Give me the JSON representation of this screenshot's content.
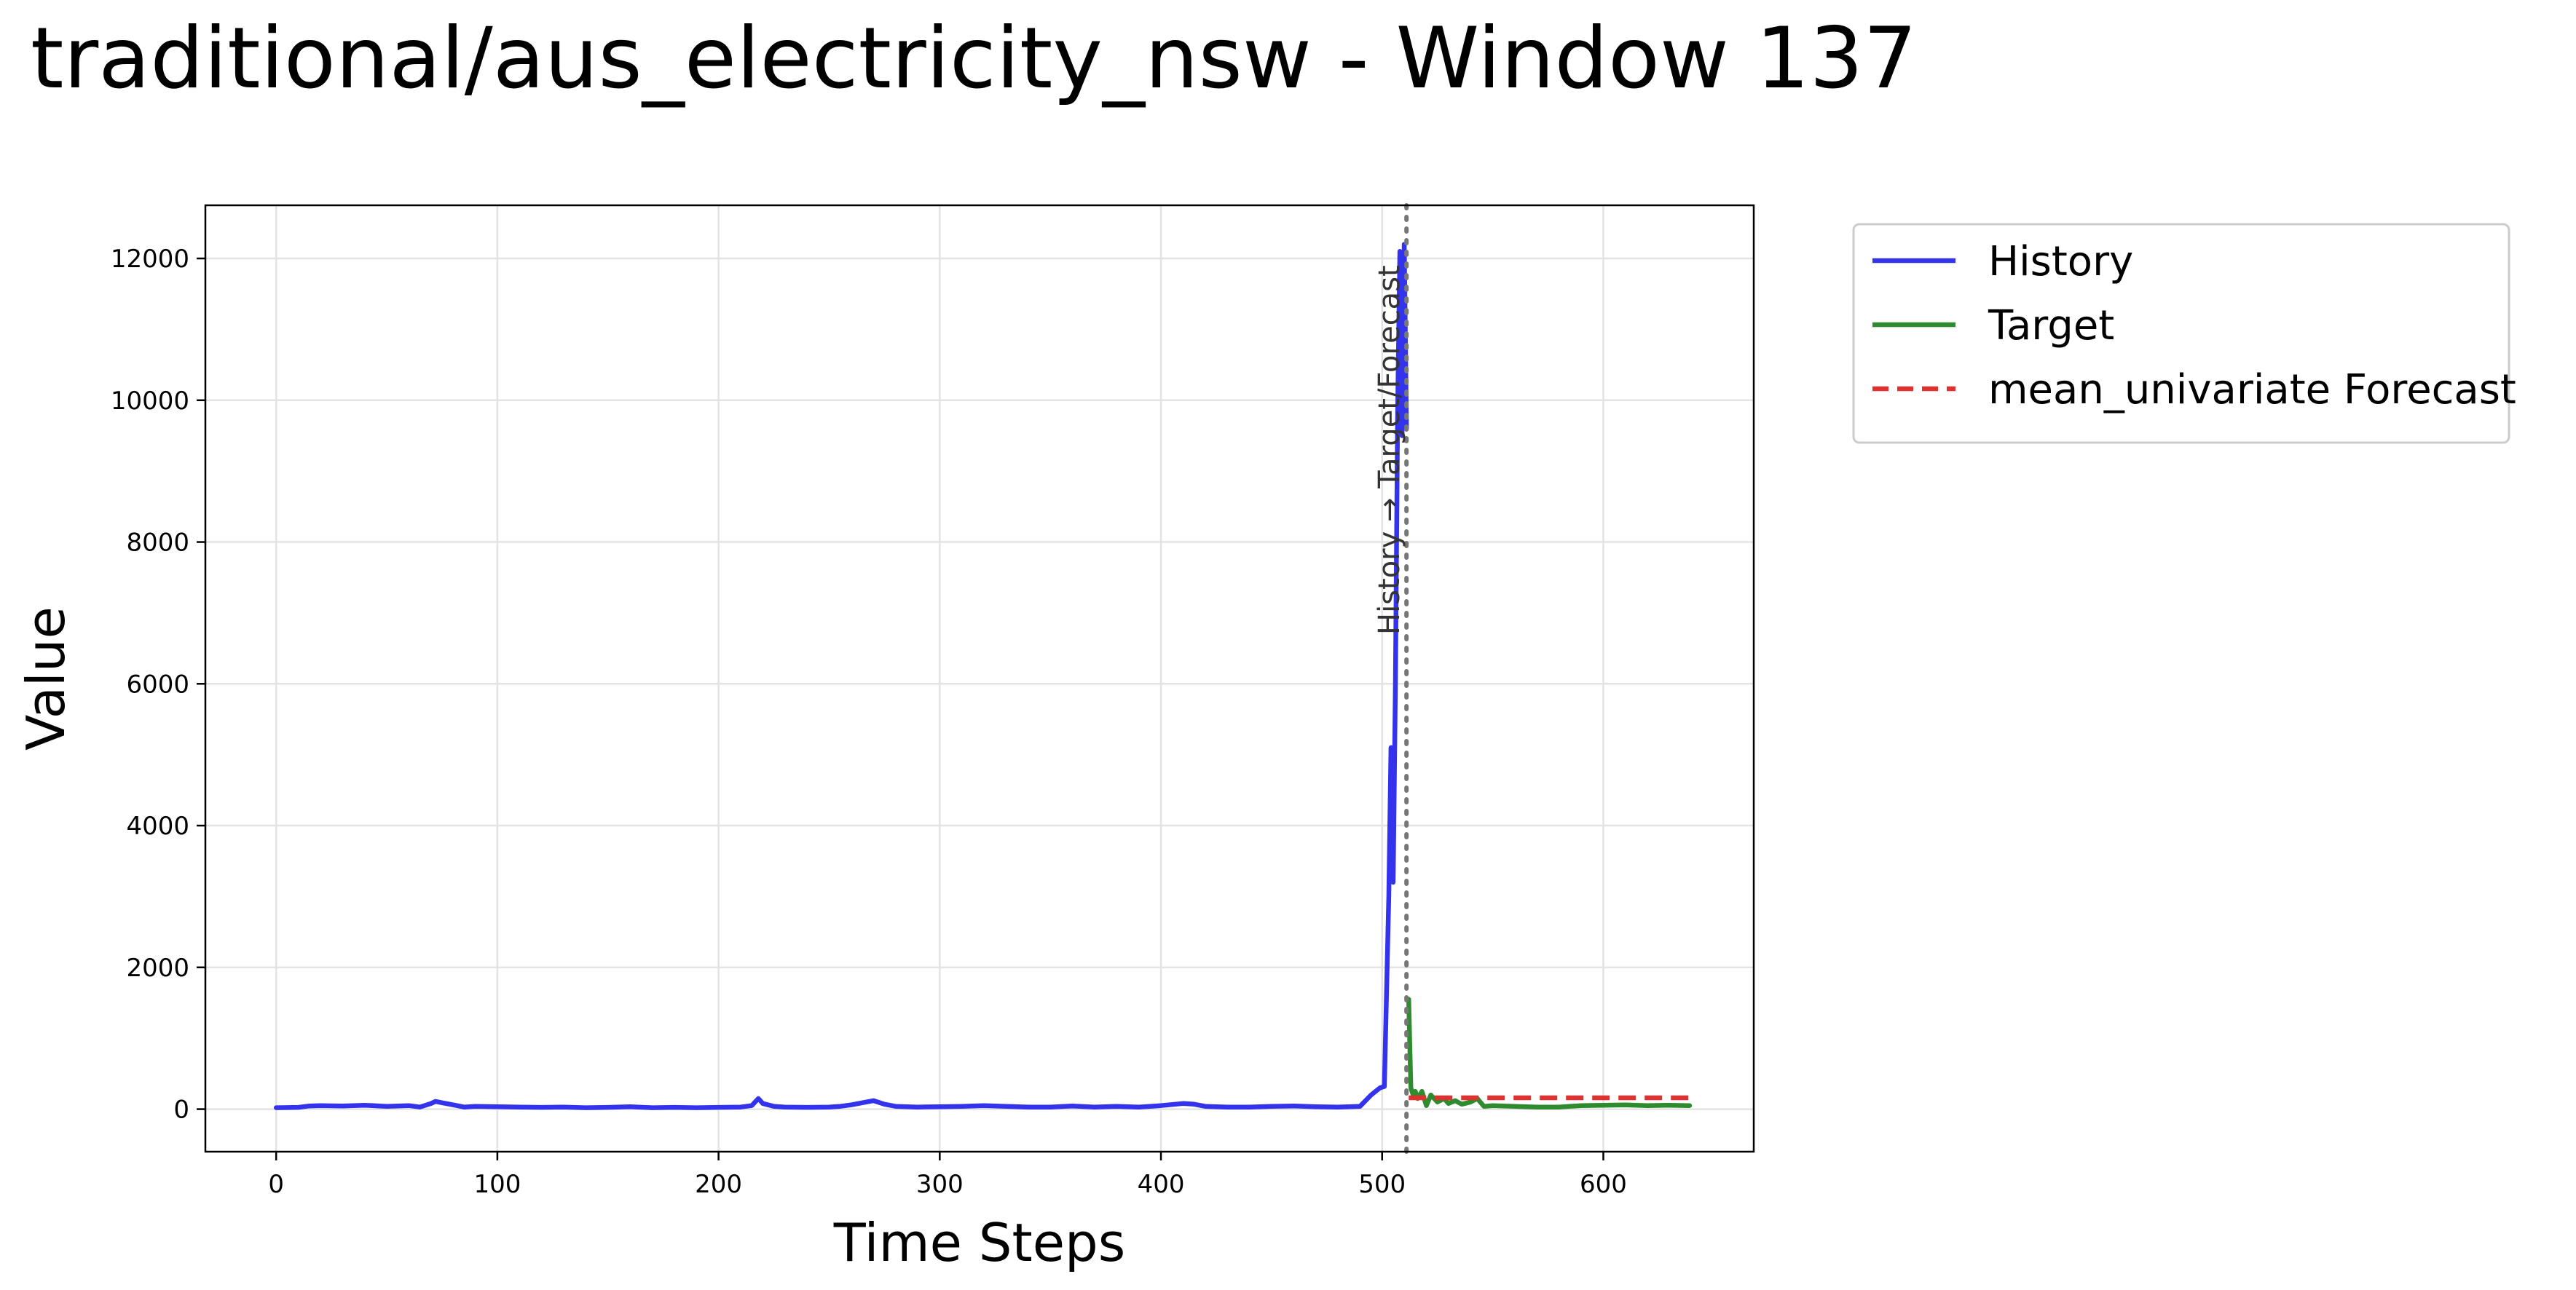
{
  "title": "traditional/aus_electricity_nsw - Window 137",
  "chart_data": {
    "type": "line",
    "title": "traditional/aus_electricity_nsw - Window 137",
    "xlabel": "Time Steps",
    "ylabel": "Value",
    "xlim": [
      -32,
      668
    ],
    "ylim": [
      -600,
      12750
    ],
    "xticks": [
      0,
      100,
      200,
      300,
      400,
      500,
      600
    ],
    "yticks": [
      0,
      2000,
      4000,
      6000,
      8000,
      10000,
      12000
    ],
    "grid": true,
    "legend_position": "outside-top-right",
    "split_label": "History → Target/Forecast",
    "split_x": 511,
    "series": [
      {
        "name": "History",
        "color": "#3333ee",
        "style": "solid",
        "x": [
          0,
          10,
          15,
          20,
          30,
          40,
          50,
          60,
          65,
          70,
          72,
          75,
          80,
          85,
          90,
          100,
          110,
          120,
          130,
          140,
          150,
          160,
          170,
          180,
          190,
          200,
          210,
          215,
          218,
          220,
          225,
          230,
          240,
          250,
          255,
          260,
          265,
          270,
          275,
          280,
          290,
          300,
          310,
          320,
          330,
          340,
          350,
          360,
          370,
          380,
          390,
          400,
          410,
          415,
          420,
          430,
          440,
          450,
          460,
          470,
          480,
          490,
          495,
          499,
          501,
          503,
          504,
          505,
          506,
          507,
          508,
          509,
          510,
          511
        ],
        "y": [
          20,
          25,
          45,
          50,
          45,
          55,
          40,
          50,
          30,
          80,
          110,
          90,
          60,
          30,
          40,
          35,
          30,
          25,
          30,
          20,
          25,
          35,
          20,
          25,
          20,
          25,
          30,
          50,
          150,
          80,
          40,
          30,
          25,
          30,
          40,
          60,
          90,
          120,
          70,
          40,
          30,
          35,
          40,
          50,
          40,
          30,
          30,
          45,
          30,
          40,
          30,
          50,
          80,
          70,
          40,
          30,
          30,
          40,
          45,
          35,
          30,
          40,
          200,
          300,
          320,
          3000,
          5100,
          3200,
          6000,
          9800,
          12100,
          9500,
          12200,
          9600
        ]
      },
      {
        "name": "Target",
        "color": "#2e8b2e",
        "style": "solid",
        "x": [
          512,
          513,
          514,
          515,
          516,
          518,
          520,
          522,
          525,
          528,
          530,
          533,
          536,
          540,
          543,
          546,
          550,
          560,
          570,
          580,
          590,
          600,
          610,
          620,
          630,
          639
        ],
        "y": [
          1550,
          300,
          200,
          250,
          150,
          250,
          50,
          200,
          100,
          150,
          80,
          120,
          70,
          100,
          150,
          40,
          50,
          40,
          30,
          30,
          50,
          55,
          60,
          50,
          55,
          50
        ]
      },
      {
        "name": "mean_univariate Forecast",
        "color": "#e03030",
        "style": "dashed",
        "x": [
          512,
          639
        ],
        "y": [
          160,
          160
        ]
      }
    ]
  }
}
